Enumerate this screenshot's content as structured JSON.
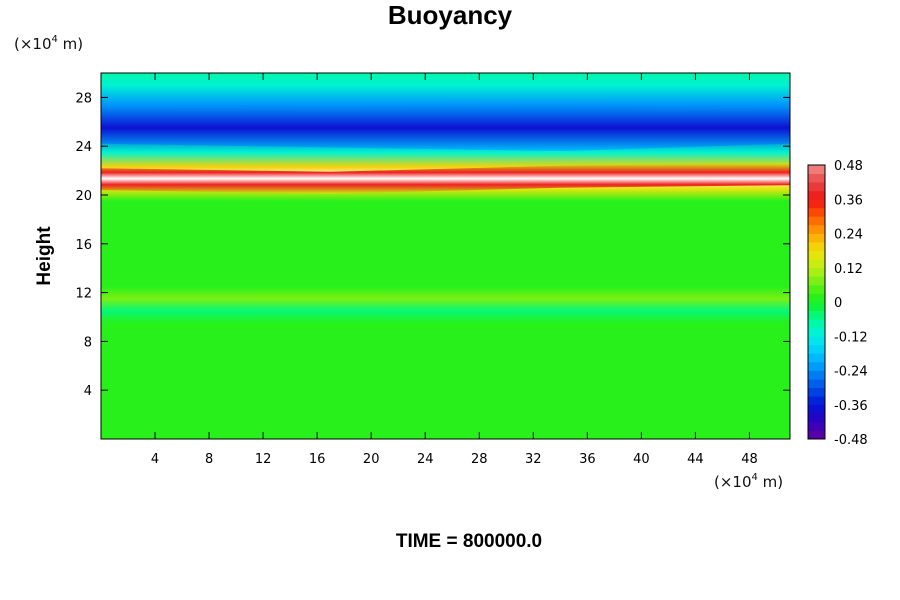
{
  "chart_data": {
    "type": "heatmap",
    "title": "Buoyancy",
    "ylabel": "Height",
    "xunit": {
      "prefix": "(×10",
      "exp": "4",
      "suffix": " m)"
    },
    "yunit": {
      "prefix": "(×10",
      "exp": "4",
      "suffix": " m)"
    },
    "xlim": [
      0,
      51
    ],
    "ylim": [
      0,
      30
    ],
    "xticks": [
      4,
      8,
      12,
      16,
      20,
      24,
      28,
      32,
      36,
      40,
      44,
      48
    ],
    "yticks": [
      4,
      8,
      12,
      16,
      20,
      24,
      28
    ],
    "colorbar": {
      "range": [
        -0.48,
        0.48
      ],
      "levels": 32,
      "tick_labels": [
        "0.48",
        "0.36",
        "0.24",
        "0.12",
        "0",
        "-0.12",
        "-0.24",
        "-0.36",
        "-0.48"
      ],
      "tick_values": [
        0.48,
        0.36,
        0.24,
        0.12,
        0,
        -0.12,
        -0.24,
        -0.36,
        -0.48
      ]
    },
    "vertical_profile": [
      {
        "height": 0,
        "value": 0.0
      },
      {
        "height": 9.5,
        "value": 0.0
      },
      {
        "height": 10.5,
        "value": -0.04
      },
      {
        "height": 11.5,
        "value": 0.07
      },
      {
        "height": 12.5,
        "value": 0.0
      },
      {
        "height": 19.5,
        "value": 0.02
      },
      {
        "height": 20.5,
        "value": 0.16
      },
      {
        "height": 21.5,
        "value": 0.5
      },
      {
        "height": 22.3,
        "value": 0.2
      },
      {
        "height": 23.5,
        "value": -0.1
      },
      {
        "height": 25.5,
        "value": -0.36
      },
      {
        "height": 27.5,
        "value": -0.24
      },
      {
        "height": 29,
        "value": -0.12
      },
      {
        "height": 30,
        "value": -0.08
      }
    ],
    "features": [
      {
        "x_range": [
          0,
          51
        ],
        "center_height": [
          21.3,
          21.0,
          21.5,
          21.7
        ],
        "value": 0.5
      },
      {
        "x_range": [
          0,
          51
        ],
        "center_height": [
          25.8,
          25.5,
          25.2,
          25.8
        ],
        "value": -0.38
      }
    ],
    "footer": "TIME = 800000.0"
  }
}
